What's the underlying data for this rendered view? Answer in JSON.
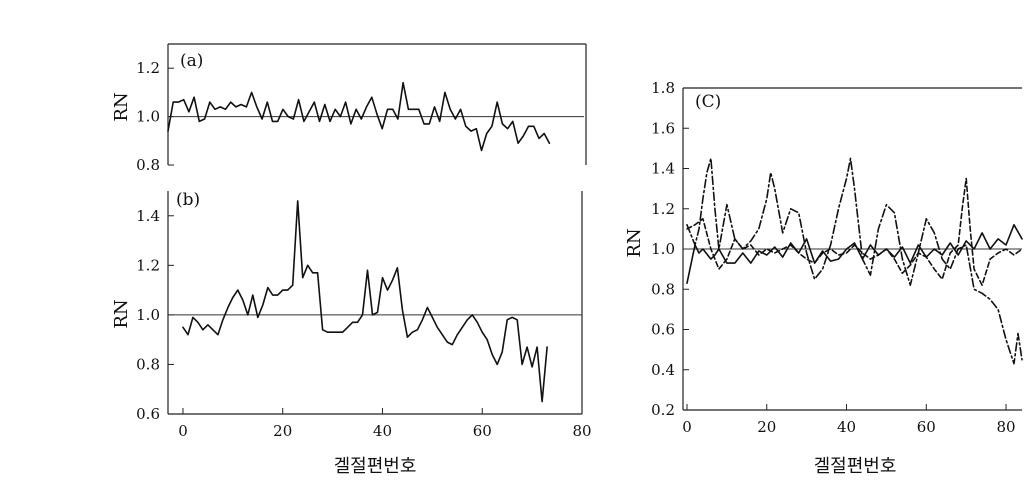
{
  "chart_data": [
    {
      "id": "a",
      "type": "line",
      "panel_label": "(a)",
      "ylabel": "RN",
      "xlabel": "",
      "xlim": [
        0,
        80
      ],
      "ylim": [
        0.8,
        1.3
      ],
      "yticks": [
        "1.2",
        "1.0",
        "0.8"
      ],
      "ytick_values": [
        1.2,
        1.0,
        0.8
      ],
      "xticks": [],
      "reference_line": 1.0,
      "series": [
        {
          "style": "solid",
          "x": [
            0,
            1,
            2,
            3,
            4,
            5,
            6,
            7,
            8,
            9,
            10,
            11,
            12,
            13,
            14,
            15,
            16,
            17,
            18,
            19,
            20,
            21,
            22,
            23,
            24,
            25,
            26,
            27,
            28,
            29,
            30,
            31,
            32,
            33,
            34,
            35,
            36,
            37,
            38,
            39,
            40,
            41,
            42,
            43,
            44,
            45,
            46,
            47,
            48,
            49,
            50,
            51,
            52,
            53,
            54,
            55,
            56,
            57,
            58,
            59,
            60,
            61,
            62,
            63,
            64,
            65,
            66,
            67,
            68,
            69,
            70,
            71,
            72,
            73
          ],
          "y": [
            0.94,
            1.06,
            1.06,
            1.07,
            1.02,
            1.08,
            0.98,
            0.99,
            1.06,
            1.03,
            1.04,
            1.03,
            1.06,
            1.04,
            1.05,
            1.04,
            1.1,
            1.04,
            0.99,
            1.06,
            0.98,
            0.98,
            1.03,
            1.0,
            0.99,
            1.07,
            0.98,
            1.02,
            1.06,
            0.98,
            1.05,
            0.98,
            1.03,
            1.0,
            1.06,
            0.97,
            1.03,
            0.99,
            1.04,
            1.08,
            1.01,
            0.95,
            1.03,
            1.03,
            0.99,
            1.14,
            1.03,
            1.03,
            1.03,
            0.97,
            0.97,
            1.04,
            0.98,
            1.1,
            1.03,
            0.99,
            1.03,
            0.96,
            0.94,
            0.95,
            0.86,
            0.93,
            0.96,
            1.06,
            0.97,
            0.95,
            0.98,
            0.89,
            0.92,
            0.96,
            0.96,
            0.91,
            0.93,
            0.89
          ]
        }
      ]
    },
    {
      "id": "b",
      "type": "line",
      "panel_label": "(b)",
      "ylabel": "RN",
      "xlabel": "겔절편번호",
      "xlim": [
        -3,
        80
      ],
      "ylim": [
        0.6,
        1.5
      ],
      "yticks": [
        "1.4",
        "1.2",
        "1.0",
        "0.8",
        "0.6"
      ],
      "ytick_values": [
        1.4,
        1.2,
        1.0,
        0.8,
        0.6
      ],
      "xticks": [
        "0",
        "20",
        "40",
        "60",
        "80"
      ],
      "xtick_values": [
        0,
        20,
        40,
        60,
        80
      ],
      "reference_line": 1.0,
      "series": [
        {
          "style": "solid",
          "x": [
            0,
            1,
            2,
            3,
            4,
            5,
            6,
            7,
            8,
            9,
            10,
            11,
            12,
            13,
            14,
            15,
            16,
            17,
            18,
            19,
            20,
            21,
            22,
            23,
            24,
            25,
            26,
            27,
            28,
            29,
            30,
            31,
            32,
            33,
            34,
            35,
            36,
            37,
            38,
            39,
            40,
            41,
            42,
            43,
            44,
            45,
            46,
            47,
            48,
            49,
            50,
            51,
            52,
            53,
            54,
            55,
            56,
            57,
            58,
            59,
            60,
            61,
            62,
            63,
            64,
            65,
            66,
            67,
            68,
            69,
            70,
            71,
            72,
            73
          ],
          "y": [
            0.95,
            0.92,
            0.99,
            0.97,
            0.94,
            0.96,
            0.94,
            0.92,
            0.98,
            1.03,
            1.07,
            1.1,
            1.06,
            1.0,
            1.08,
            0.99,
            1.04,
            1.11,
            1.08,
            1.08,
            1.1,
            1.1,
            1.12,
            1.46,
            1.15,
            1.2,
            1.17,
            1.17,
            0.94,
            0.93,
            0.93,
            0.93,
            0.93,
            0.95,
            0.97,
            0.97,
            1.0,
            1.18,
            1.0,
            1.01,
            1.15,
            1.1,
            1.14,
            1.19,
            1.02,
            0.91,
            0.93,
            0.94,
            0.98,
            1.03,
            0.99,
            0.95,
            0.92,
            0.89,
            0.88,
            0.92,
            0.95,
            0.98,
            1.0,
            0.97,
            0.93,
            0.9,
            0.84,
            0.8,
            0.85,
            0.98,
            0.99,
            0.98,
            0.8,
            0.87,
            0.79,
            0.87,
            0.65,
            0.87
          ]
        }
      ]
    },
    {
      "id": "c",
      "type": "line",
      "panel_label": "(C)",
      "ylabel": "RN",
      "xlabel": "겔절편번호",
      "xlim": [
        -1,
        84
      ],
      "ylim": [
        0.2,
        1.8
      ],
      "yticks": [
        "1.8",
        "1.6",
        "1.4",
        "1.2",
        "1.0",
        "0.8",
        "0.6",
        "0.4",
        "0.2"
      ],
      "ytick_values": [
        1.8,
        1.6,
        1.4,
        1.2,
        1.0,
        0.8,
        0.6,
        0.4,
        0.2
      ],
      "xticks": [
        "0",
        "20",
        "40",
        "60",
        "80"
      ],
      "xtick_values": [
        0,
        20,
        40,
        60,
        80
      ],
      "reference_line": 1.0,
      "series": [
        {
          "style": "solid",
          "x": [
            0,
            2,
            3,
            4,
            6,
            7,
            8,
            10,
            12,
            14,
            16,
            18,
            20,
            22,
            24,
            26,
            28,
            30,
            32,
            34,
            36,
            38,
            40,
            42,
            44,
            46,
            48,
            50,
            52,
            54,
            56,
            58,
            60,
            62,
            64,
            66,
            68,
            70,
            72,
            74,
            76,
            78,
            80,
            82,
            84
          ],
          "y": [
            0.83,
            1.02,
            0.98,
            1.0,
            0.95,
            0.97,
            1.0,
            0.93,
            0.93,
            0.98,
            0.93,
            0.99,
            0.97,
            1.01,
            0.96,
            1.03,
            0.98,
            1.05,
            0.93,
            0.99,
            0.94,
            0.95,
            1.0,
            1.03,
            0.95,
            1.02,
            0.97,
            1.0,
            0.96,
            1.01,
            0.93,
            1.02,
            0.96,
            1.0,
            0.97,
            1.03,
            0.97,
            1.04,
            1.0,
            1.08,
            1.0,
            1.05,
            1.02,
            1.12,
            1.05
          ]
        },
        {
          "style": "dashdot",
          "x": [
            0,
            2,
            3,
            4,
            5,
            6,
            7,
            8,
            10,
            12,
            14,
            16,
            18,
            20,
            21,
            22,
            24,
            26,
            28,
            30,
            32,
            34,
            36,
            38,
            40,
            41,
            42,
            44,
            46,
            48,
            50,
            52,
            54,
            56,
            58,
            60,
            62,
            64,
            66,
            68,
            70,
            72,
            74,
            76,
            78,
            80,
            82,
            83,
            84
          ],
          "y": [
            1.12,
            1.02,
            1.1,
            1.25,
            1.38,
            1.45,
            1.2,
            1.0,
            1.22,
            1.05,
            1.0,
            1.04,
            1.1,
            1.25,
            1.38,
            1.3,
            1.08,
            1.2,
            1.18,
            0.98,
            0.85,
            0.9,
            1.02,
            1.2,
            1.35,
            1.45,
            1.3,
            0.95,
            0.87,
            1.1,
            1.22,
            1.18,
            0.95,
            0.82,
            0.98,
            1.15,
            1.08,
            0.95,
            0.9,
            1.0,
            1.02,
            0.8,
            0.78,
            0.75,
            0.7,
            0.55,
            0.43,
            0.58,
            0.45
          ]
        },
        {
          "style": "dashed",
          "x": [
            0,
            2,
            4,
            6,
            8,
            10,
            12,
            14,
            16,
            18,
            20,
            22,
            24,
            26,
            28,
            30,
            32,
            34,
            36,
            38,
            40,
            42,
            44,
            46,
            48,
            50,
            52,
            54,
            56,
            58,
            60,
            62,
            64,
            66,
            68,
            69,
            70,
            71,
            72,
            74,
            76,
            78,
            80,
            82,
            84
          ],
          "y": [
            1.1,
            1.12,
            1.15,
            1.0,
            0.9,
            0.95,
            1.05,
            1.0,
            1.02,
            0.97,
            1.0,
            0.98,
            1.0,
            1.02,
            0.98,
            0.95,
            0.93,
            0.98,
            1.0,
            0.97,
            0.98,
            1.02,
            0.98,
            0.95,
            0.97,
            1.0,
            0.95,
            0.88,
            0.92,
            0.98,
            0.96,
            0.9,
            0.85,
            0.98,
            1.02,
            1.2,
            1.35,
            1.1,
            0.9,
            0.82,
            0.95,
            0.98,
            1.0,
            0.97,
            1.0
          ]
        }
      ]
    }
  ]
}
